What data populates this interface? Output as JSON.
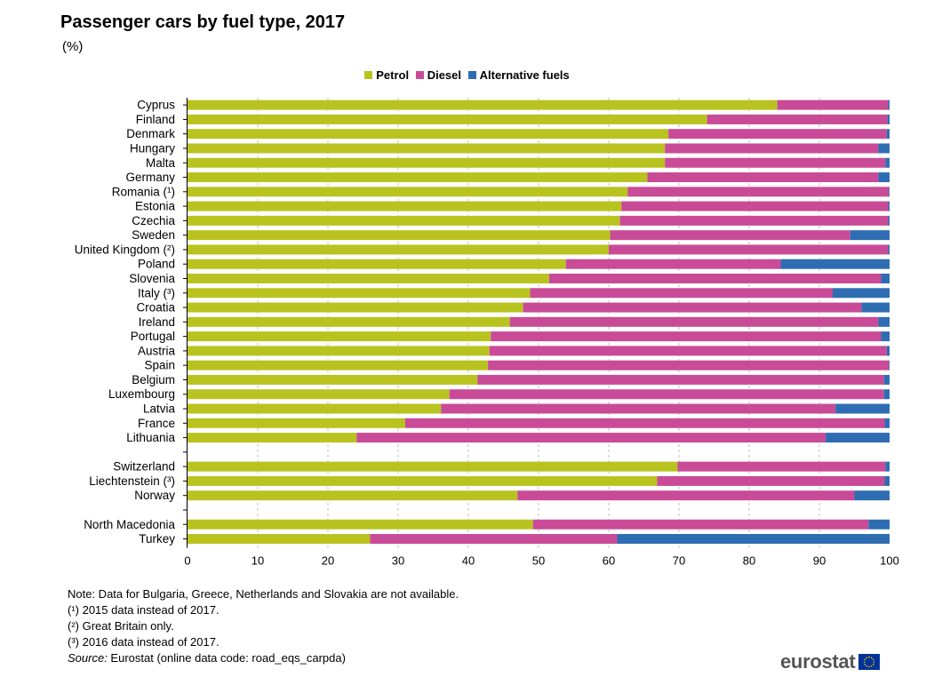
{
  "header": {
    "title": "Passenger cars by fuel type, 2017",
    "subtitle": "(%)"
  },
  "colors": {
    "petrol": "#b9c31f",
    "diesel": "#c94b97",
    "alternative": "#2f6db3",
    "grid": "#bfbfbf",
    "axis": "#000000",
    "logo_text": "#555555",
    "flag_blue": "#003399",
    "flag_star": "#ffcc00"
  },
  "notes": {
    "note": "Note: Data for Bulgaria, Greece, Netherlands and Slovakia are not available.",
    "fn1": "(¹) 2015 data instead of 2017.",
    "fn2": "(²) Great Britain only.",
    "fn3": "(³) 2016 data instead of 2017.",
    "source_label": "Source:",
    "source_text": " Eurostat (online data code: road_eqs_carpda)"
  },
  "logo": {
    "text": "eurostat",
    "icon": "eu-flag-icon"
  },
  "chart_data": {
    "type": "bar",
    "orientation": "horizontal",
    "stacked": true,
    "title": "Passenger cars by fuel type, 2017",
    "subtitle": "(%)",
    "legend_position": "top-center",
    "grid": true,
    "xlim": [
      0,
      100
    ],
    "x_ticks": [
      0,
      10,
      20,
      30,
      40,
      50,
      60,
      70,
      80,
      90,
      100
    ],
    "categories": [
      "Cyprus",
      "Finland",
      "Denmark",
      "Hungary",
      "Malta",
      "Germany",
      "Romania (¹)",
      "Estonia",
      "Czechia",
      "Sweden",
      "United Kingdom (²)",
      "Poland",
      "Slovenia",
      "Italy (³)",
      "Croatia",
      "Ireland",
      "Portugal",
      "Austria",
      "Spain",
      "Belgium",
      "Luxembourg",
      "Latvia",
      "France",
      "Lithuania",
      "",
      "Switzerland",
      "Liechtenstein (³)",
      "Norway",
      "",
      "North Macedonia",
      "Turkey"
    ],
    "series": [
      {
        "name": "Petrol",
        "values": [
          84,
          74,
          68.5,
          68,
          68,
          65.5,
          62.7,
          61.8,
          61.6,
          60.2,
          60,
          53.9,
          51.5,
          48.8,
          47.8,
          45.9,
          43.2,
          43,
          42.8,
          41.3,
          37.3,
          36.1,
          31,
          24.1,
          null,
          69.8,
          66.9,
          47,
          null,
          49.2,
          26
        ]
      },
      {
        "name": "Diesel",
        "values": [
          15.8,
          25.7,
          31.1,
          30.4,
          31.4,
          32.9,
          37.2,
          38,
          38.2,
          34.2,
          39.8,
          30.6,
          47.3,
          43.1,
          48.2,
          52.5,
          55.6,
          56.6,
          57.1,
          57.9,
          61.9,
          56.2,
          68.3,
          66.8,
          null,
          29.6,
          32.4,
          48,
          null,
          47.8,
          35.2
        ]
      },
      {
        "name": "Alternative fuels",
        "values": [
          0.2,
          0.3,
          0.4,
          1.6,
          0.6,
          1.6,
          0.1,
          0.2,
          0.2,
          5.6,
          0.2,
          15.5,
          1.2,
          8.1,
          4,
          1.6,
          1.2,
          0.4,
          0.1,
          0.8,
          0.8,
          7.7,
          0.7,
          9.1,
          null,
          0.6,
          0.7,
          5,
          null,
          3,
          38.8
        ]
      }
    ]
  }
}
